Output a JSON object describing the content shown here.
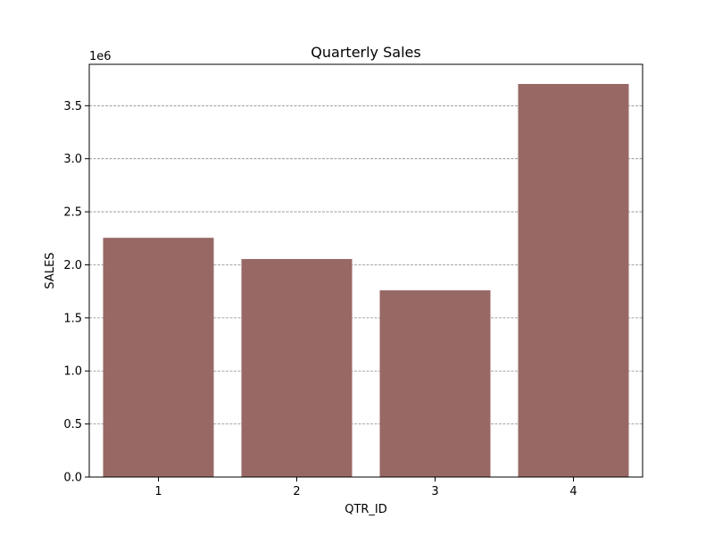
{
  "chart_data": {
    "type": "bar",
    "title": "Quarterly Sales",
    "xlabel": "QTR_ID",
    "ylabel": "SALES",
    "y_multiplier_label": "1e6",
    "categories": [
      "1",
      "2",
      "3",
      "4"
    ],
    "values": [
      2255000,
      2055000,
      1760000,
      3705000
    ],
    "ylim": [
      0,
      3890000
    ],
    "y_ticks": [
      0,
      500000,
      1000000,
      1500000,
      2000000,
      2500000,
      3000000,
      3500000
    ],
    "y_tick_labels": [
      "0.0",
      "0.5",
      "1.0",
      "1.5",
      "2.0",
      "2.5",
      "3.0",
      "3.5"
    ],
    "grid": true,
    "bar_color": "#986865",
    "grid_color": "#8c8c8c"
  }
}
